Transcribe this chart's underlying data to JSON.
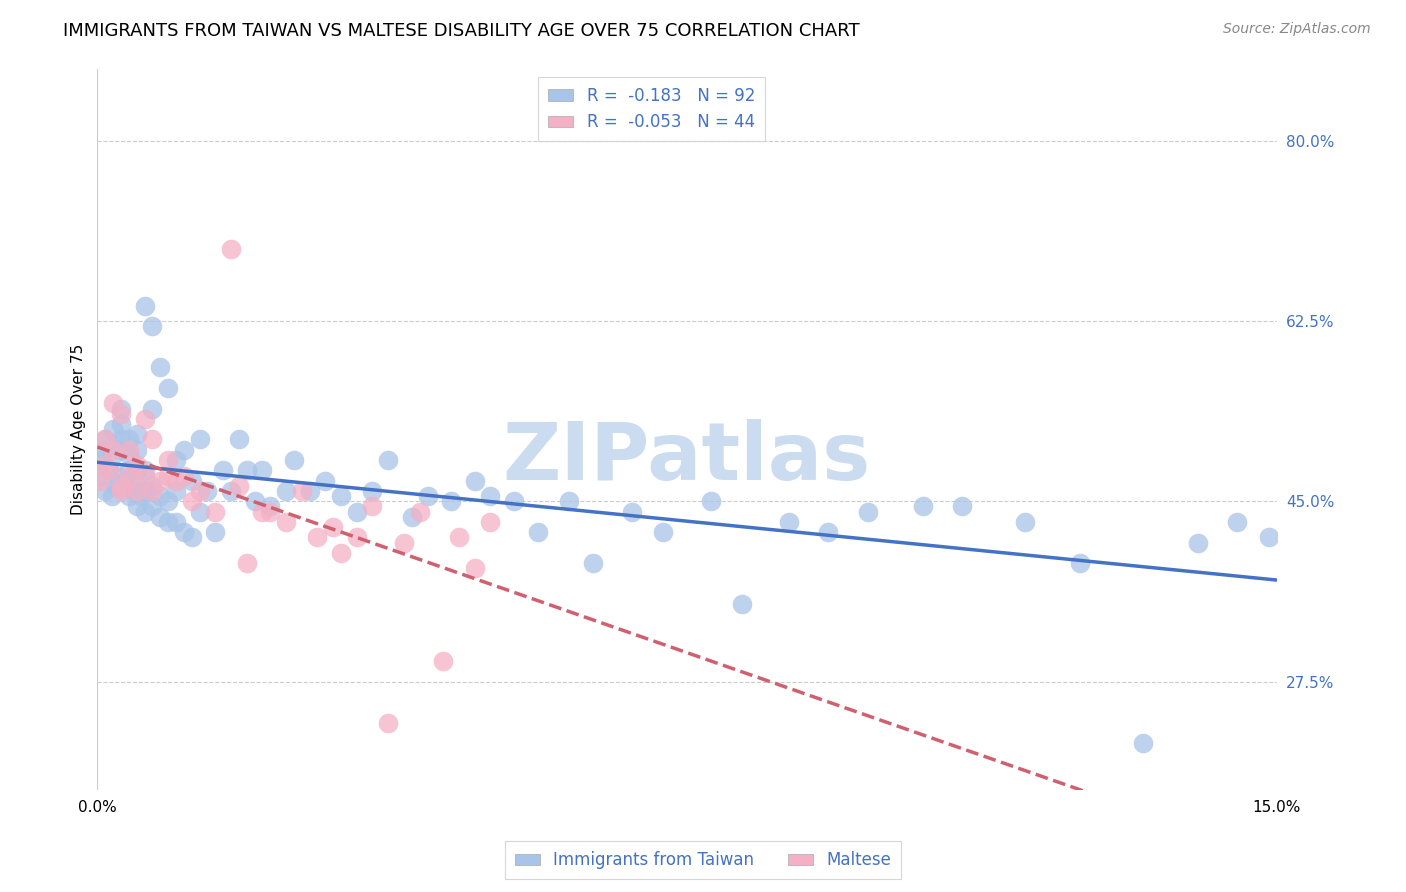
{
  "title": "IMMIGRANTS FROM TAIWAN VS MALTESE DISABILITY AGE OVER 75 CORRELATION CHART",
  "source": "Source: ZipAtlas.com",
  "ylabel": "Disability Age Over 75",
  "y_tick_labels_right": [
    "80.0%",
    "62.5%",
    "45.0%",
    "27.5%"
  ],
  "y_tick_values_right": [
    0.8,
    0.625,
    0.45,
    0.275
  ],
  "legend_label_blue": "R =  -0.183   N = 92",
  "legend_label_pink": "R =  -0.053   N = 44",
  "legend_label_blue_name": "Immigrants from Taiwan",
  "legend_label_pink_name": "Maltese",
  "color_blue": "#a8c4e8",
  "color_pink": "#f4b0c4",
  "color_blue_line": "#4472c4",
  "color_pink_line": "#d06070",
  "color_text_blue": "#4472c4",
  "color_watermark": "#ccdcf0",
  "xlim": [
    0.0,
    0.15
  ],
  "ylim": [
    0.17,
    0.87
  ],
  "grid_color": "#cccccc",
  "background_color": "#ffffff",
  "title_fontsize": 13,
  "source_fontsize": 10,
  "axis_label_fontsize": 11,
  "tick_fontsize": 11,
  "taiwan_x": [
    0.0003,
    0.0005,
    0.0008,
    0.001,
    0.001,
    0.0015,
    0.0018,
    0.002,
    0.002,
    0.002,
    0.0022,
    0.0025,
    0.003,
    0.003,
    0.003,
    0.003,
    0.0035,
    0.004,
    0.004,
    0.004,
    0.004,
    0.0045,
    0.005,
    0.005,
    0.005,
    0.005,
    0.005,
    0.0055,
    0.006,
    0.006,
    0.006,
    0.006,
    0.007,
    0.007,
    0.007,
    0.007,
    0.008,
    0.008,
    0.008,
    0.009,
    0.009,
    0.009,
    0.01,
    0.01,
    0.01,
    0.011,
    0.011,
    0.012,
    0.012,
    0.013,
    0.013,
    0.014,
    0.015,
    0.016,
    0.017,
    0.018,
    0.019,
    0.02,
    0.021,
    0.022,
    0.024,
    0.025,
    0.027,
    0.029,
    0.031,
    0.033,
    0.035,
    0.037,
    0.04,
    0.042,
    0.045,
    0.048,
    0.05,
    0.053,
    0.056,
    0.06,
    0.063,
    0.068,
    0.072,
    0.078,
    0.082,
    0.088,
    0.093,
    0.098,
    0.105,
    0.11,
    0.118,
    0.125,
    0.133,
    0.14,
    0.145,
    0.149
  ],
  "taiwan_y": [
    0.475,
    0.49,
    0.5,
    0.46,
    0.51,
    0.48,
    0.455,
    0.495,
    0.505,
    0.52,
    0.465,
    0.475,
    0.5,
    0.51,
    0.525,
    0.54,
    0.47,
    0.455,
    0.48,
    0.495,
    0.51,
    0.46,
    0.445,
    0.465,
    0.48,
    0.5,
    0.515,
    0.455,
    0.44,
    0.46,
    0.48,
    0.64,
    0.445,
    0.465,
    0.54,
    0.62,
    0.435,
    0.455,
    0.58,
    0.43,
    0.45,
    0.56,
    0.43,
    0.46,
    0.49,
    0.42,
    0.5,
    0.415,
    0.47,
    0.44,
    0.51,
    0.46,
    0.42,
    0.48,
    0.46,
    0.51,
    0.48,
    0.45,
    0.48,
    0.445,
    0.46,
    0.49,
    0.46,
    0.47,
    0.455,
    0.44,
    0.46,
    0.49,
    0.435,
    0.455,
    0.45,
    0.47,
    0.455,
    0.45,
    0.42,
    0.45,
    0.39,
    0.44,
    0.42,
    0.45,
    0.35,
    0.43,
    0.42,
    0.44,
    0.445,
    0.445,
    0.43,
    0.39,
    0.215,
    0.41,
    0.43,
    0.415
  ],
  "maltese_x": [
    0.0003,
    0.0008,
    0.001,
    0.0015,
    0.002,
    0.002,
    0.003,
    0.003,
    0.003,
    0.004,
    0.004,
    0.005,
    0.005,
    0.006,
    0.006,
    0.007,
    0.007,
    0.008,
    0.009,
    0.009,
    0.01,
    0.011,
    0.012,
    0.013,
    0.015,
    0.017,
    0.018,
    0.019,
    0.021,
    0.022,
    0.024,
    0.026,
    0.028,
    0.03,
    0.031,
    0.033,
    0.035,
    0.037,
    0.039,
    0.041,
    0.044,
    0.046,
    0.048,
    0.05
  ],
  "maltese_y": [
    0.47,
    0.485,
    0.51,
    0.48,
    0.5,
    0.545,
    0.46,
    0.535,
    0.465,
    0.475,
    0.5,
    0.46,
    0.485,
    0.475,
    0.53,
    0.46,
    0.51,
    0.47,
    0.475,
    0.49,
    0.47,
    0.475,
    0.45,
    0.46,
    0.44,
    0.695,
    0.465,
    0.39,
    0.44,
    0.44,
    0.43,
    0.46,
    0.415,
    0.425,
    0.4,
    0.415,
    0.445,
    0.235,
    0.41,
    0.44,
    0.295,
    0.415,
    0.385,
    0.43
  ]
}
